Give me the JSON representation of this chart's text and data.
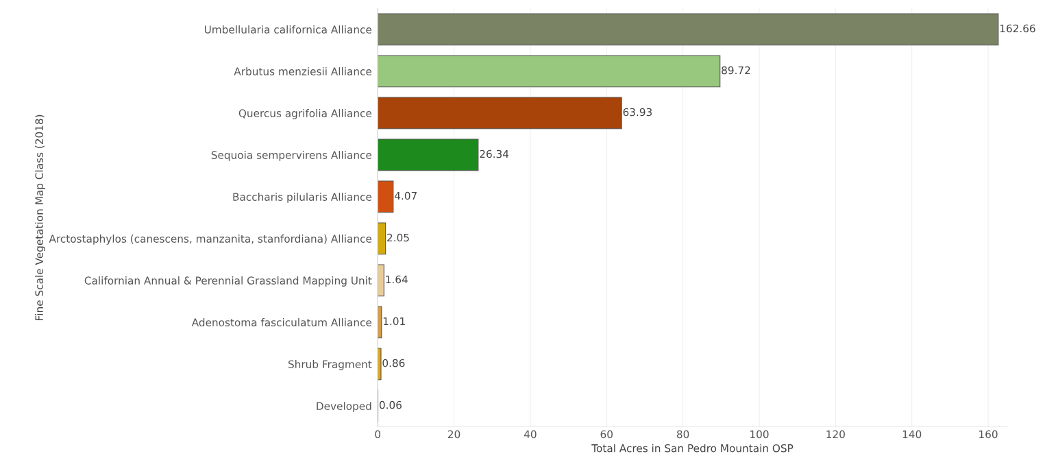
{
  "chart_data": {
    "type": "bar",
    "orientation": "horizontal",
    "xlabel": "Total Acres in San Pedro Mountain OSP",
    "ylabel": "Fine Scale Vegetation Map Class (2018)",
    "categories": [
      "Umbellularia californica Alliance",
      "Arbutus menziesii Alliance",
      "Quercus agrifolia Alliance",
      "Sequoia sempervirens Alliance",
      "Baccharis pilularis Alliance",
      "Arctostaphylos (canescens, manzanita, stanfordiana) Alliance",
      "Californian Annual & Perennial Grassland Mapping Unit",
      "Adenostoma fasciculatum Alliance",
      "Shrub Fragment",
      "Developed"
    ],
    "values": [
      162.66,
      89.72,
      63.93,
      26.34,
      4.07,
      2.05,
      1.64,
      1.01,
      0.86,
      0.06
    ],
    "colors": [
      "#7a8464",
      "#98c87e",
      "#a8430a",
      "#1d8a1d",
      "#d2500f",
      "#d4ab0f",
      "#e8cc9a",
      "#d39c4e",
      "#dfa817",
      "#7a7a7a"
    ],
    "data_labels": true,
    "xlim": [
      0,
      165
    ],
    "xticks": [
      0,
      20,
      40,
      60,
      80,
      100,
      120,
      140,
      160
    ],
    "grid": "x"
  }
}
